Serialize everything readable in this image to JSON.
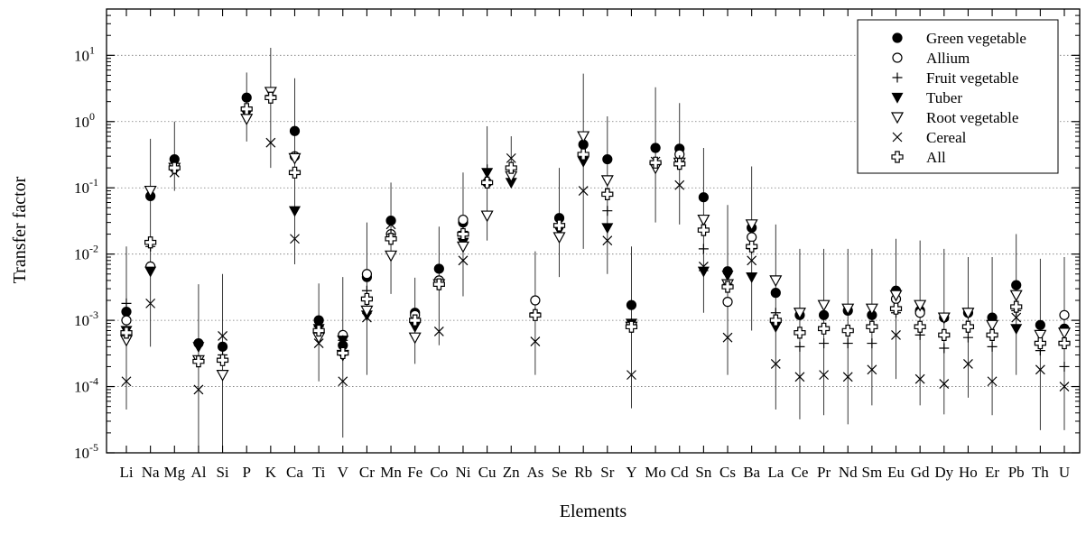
{
  "chart_data": {
    "type": "scatter",
    "xlabel": "Elements",
    "ylabel": "Transfer factor",
    "y_scale": "log",
    "ylim": [
      1e-05,
      50
    ],
    "y_ticks": [
      {
        "value": 1e-05,
        "base": "10",
        "exp": "-5"
      },
      {
        "value": 0.0001,
        "base": "10",
        "exp": "-4"
      },
      {
        "value": 0.001,
        "base": "10",
        "exp": "-3"
      },
      {
        "value": 0.01,
        "base": "10",
        "exp": "-2"
      },
      {
        "value": 0.1,
        "base": "10",
        "exp": "-1"
      },
      {
        "value": 1,
        "base": "10",
        "exp": "0"
      },
      {
        "value": 10,
        "base": "10",
        "exp": "1"
      }
    ],
    "grid": "horizontal dotted at decades",
    "legend_position": "top-right",
    "categories": [
      "Li",
      "Na",
      "Mg",
      "Al",
      "Si",
      "P",
      "K",
      "Ca",
      "Ti",
      "V",
      "Cr",
      "Mn",
      "Fe",
      "Co",
      "Ni",
      "Cu",
      "Zn",
      "As",
      "Se",
      "Rb",
      "Sr",
      "Y",
      "Mo",
      "Cd",
      "Sn",
      "Cs",
      "Ba",
      "La",
      "Ce",
      "Pr",
      "Nd",
      "Sm",
      "Eu",
      "Gd",
      "Dy",
      "Ho",
      "Er",
      "Pb",
      "Th",
      "U"
    ],
    "series": [
      {
        "name": "Green vegetable",
        "marker": "filled-circle",
        "values": [
          0.00135,
          0.075,
          0.27,
          0.00045,
          0.0004,
          2.3,
          null,
          0.72,
          0.001,
          0.00042,
          0.0045,
          0.032,
          0.0013,
          0.006,
          0.03,
          0.12,
          null,
          null,
          0.035,
          0.45,
          0.27,
          0.0017,
          0.4,
          0.39,
          0.072,
          0.0055,
          0.025,
          0.0026,
          0.0012,
          0.0012,
          0.0014,
          0.0012,
          0.0028,
          0.0014,
          0.0011,
          0.0013,
          0.0011,
          0.0034,
          0.00085,
          0.00075
        ]
      },
      {
        "name": "Allium",
        "marker": "open-circle",
        "values": [
          0.001,
          0.0065,
          0.2,
          null,
          null,
          null,
          null,
          0.3,
          null,
          0.0006,
          0.005,
          0.02,
          0.0012,
          0.004,
          0.033,
          null,
          null,
          0.002,
          null,
          null,
          null,
          null,
          null,
          0.32,
          null,
          0.0019,
          0.018,
          null,
          null,
          null,
          null,
          null,
          0.0021,
          0.0013,
          null,
          null,
          null,
          null,
          null,
          0.0012
        ]
      },
      {
        "name": "Fruit vegetable",
        "marker": "plus",
        "values": [
          0.0018,
          0.013,
          0.22,
          0.00025,
          0.0003,
          1.5,
          2.5,
          0.3,
          0.0008,
          0.0005,
          0.0028,
          0.02,
          0.0009,
          0.0035,
          0.022,
          0.19,
          0.2,
          0.0013,
          0.028,
          0.33,
          0.045,
          0.0009,
          0.25,
          0.26,
          0.012,
          0.0035,
          0.012,
          0.0013,
          0.0004,
          0.00045,
          0.00045,
          0.00045,
          0.0013,
          0.0006,
          0.00038,
          0.00055,
          0.0004,
          0.0014,
          0.00035,
          0.0002
        ]
      },
      {
        "name": "Tuber",
        "marker": "filled-triangle-down",
        "values": [
          0.0007,
          0.0055,
          null,
          0.0004,
          null,
          1.3,
          null,
          0.045,
          0.00075,
          0.0005,
          0.0012,
          null,
          0.0008,
          null,
          0.015,
          0.17,
          0.12,
          null,
          0.023,
          0.25,
          0.025,
          0.0009,
          null,
          null,
          0.0055,
          0.0048,
          0.0045,
          0.0008,
          null,
          null,
          null,
          null,
          null,
          null,
          null,
          null,
          null,
          0.00075,
          null,
          null
        ]
      },
      {
        "name": "Root vegetable",
        "marker": "open-triangle-down",
        "values": [
          0.0005,
          0.09,
          0.2,
          0.00025,
          0.00015,
          1.1,
          2.8,
          0.28,
          0.00055,
          0.0003,
          0.0014,
          0.0095,
          0.00055,
          0.0035,
          0.013,
          0.038,
          0.15,
          null,
          0.018,
          0.6,
          0.13,
          0.0008,
          0.2,
          0.24,
          0.033,
          0.0035,
          0.028,
          0.004,
          0.0013,
          0.0017,
          0.0015,
          0.0015,
          0.0024,
          0.0017,
          0.0011,
          0.0013,
          0.00085,
          0.0024,
          0.0006,
          0.00065
        ]
      },
      {
        "name": "Cereal",
        "marker": "x",
        "values": [
          0.00012,
          0.0018,
          0.17,
          9e-05,
          0.00058,
          null,
          0.48,
          0.017,
          0.00045,
          0.00012,
          0.0011,
          0.028,
          null,
          0.00068,
          0.008,
          null,
          0.28,
          0.00048,
          0.03,
          0.09,
          0.016,
          0.00015,
          0.25,
          0.11,
          0.0065,
          0.00055,
          0.008,
          0.00022,
          0.00014,
          0.00015,
          0.00014,
          0.00018,
          0.0006,
          0.00013,
          0.00011,
          0.00022,
          0.00012,
          0.0011,
          0.00018,
          0.0001
        ]
      },
      {
        "name": "All",
        "marker": "open-cross",
        "values": [
          0.00065,
          0.015,
          0.2,
          0.00024,
          0.00025,
          1.55,
          2.3,
          0.17,
          0.0007,
          0.00032,
          0.0021,
          0.017,
          0.001,
          0.0035,
          0.02,
          0.12,
          0.2,
          0.0012,
          0.027,
          0.32,
          0.08,
          0.0008,
          0.24,
          0.23,
          0.023,
          0.0032,
          0.013,
          0.001,
          0.00065,
          0.00075,
          0.0007,
          0.0008,
          0.0015,
          0.0008,
          0.0006,
          0.0008,
          0.0006,
          0.0016,
          0.00045,
          0.00045
        ]
      }
    ],
    "error_bars": [
      [
        4.5e-05,
        0.013
      ],
      [
        0.0004,
        0.55
      ],
      [
        0.09,
        1.0
      ],
      [
        1.2e-05,
        0.0035
      ],
      [
        1e-05,
        0.005
      ],
      [
        0.5,
        5.5
      ],
      [
        0.2,
        13
      ],
      [
        0.007,
        4.5
      ],
      [
        0.00012,
        0.0036
      ],
      [
        1.7e-05,
        0.0045
      ],
      [
        0.00015,
        0.03
      ],
      [
        0.0025,
        0.12
      ],
      [
        0.00022,
        0.0044
      ],
      [
        0.00042,
        0.026
      ],
      [
        0.0023,
        0.17
      ],
      [
        0.016,
        0.85
      ],
      [
        0.1,
        0.6
      ],
      [
        0.00015,
        0.011
      ],
      [
        0.0045,
        0.2
      ],
      [
        0.012,
        5.3
      ],
      [
        0.005,
        1.2
      ],
      [
        4.7e-05,
        0.013
      ],
      [
        0.03,
        3.3
      ],
      [
        0.028,
        1.9
      ],
      [
        0.0013,
        0.4
      ],
      [
        0.00015,
        0.055
      ],
      [
        0.0007,
        0.21
      ],
      [
        4.5e-05,
        0.028
      ],
      [
        3.2e-05,
        0.012
      ],
      [
        3.7e-05,
        0.012
      ],
      [
        2.7e-05,
        0.012
      ],
      [
        5.2e-05,
        0.012
      ],
      [
        0.00013,
        0.017
      ],
      [
        5.2e-05,
        0.016
      ],
      [
        3.8e-05,
        0.012
      ],
      [
        6.8e-05,
        0.009
      ],
      [
        3.7e-05,
        0.009
      ],
      [
        0.00015,
        0.02
      ],
      [
        2.2e-05,
        0.0085
      ],
      [
        2.2e-05,
        0.009
      ]
    ]
  }
}
